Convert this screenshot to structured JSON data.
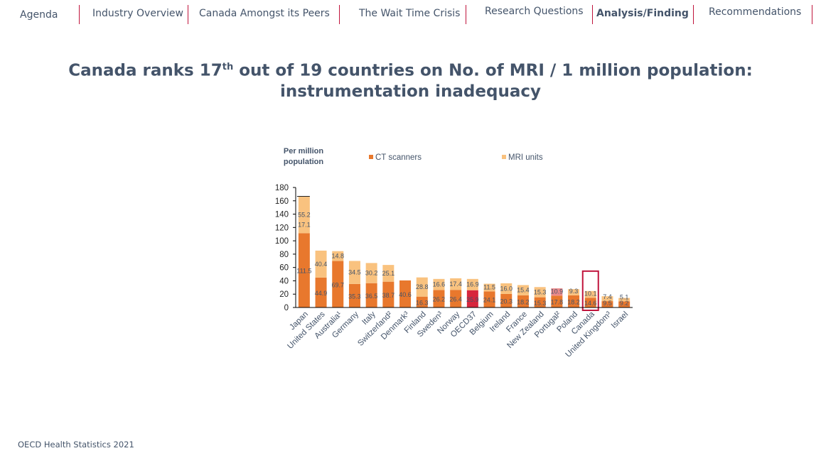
{
  "nav": {
    "tabs": [
      {
        "label": "Agenda",
        "active": false
      },
      {
        "label": "Industry Overview",
        "active": false
      },
      {
        "label": "Canada Amongst its Peers",
        "active": false
      },
      {
        "label": "The Wait Time Crisis",
        "active": false
      },
      {
        "label": "Research Questions",
        "active": false
      },
      {
        "label": "Analysis/Finding",
        "active": true
      },
      {
        "label": "Recommendations",
        "active": false
      }
    ]
  },
  "slide": {
    "title_pre": "Canada ranks 17",
    "title_sup": "th",
    "title_post": " out of 19 countries on No. of MRI / 1 million population: instrumentation inadequacy",
    "source": "OECD Health Statistics 2021"
  },
  "chart_data": {
    "type": "bar",
    "stacked": true,
    "unit_label": "Per million population",
    "categories": [
      "Japan",
      "United States",
      "Australia¹",
      "Germany",
      "Italy",
      "Switzerland²",
      "Denmark³",
      "Finland",
      "Sweden³",
      "Norway",
      "OECD37",
      "Belgium",
      "Ireland",
      "France",
      "New Zealand",
      "Portugal²",
      "Poland",
      "Canada",
      "United Kingdom³",
      "Israel"
    ],
    "series": [
      {
        "name": "CT scanners",
        "color": "#e8782d",
        "values": [
          111.5,
          44.9,
          69.7,
          35.3,
          36.5,
          38.7,
          40.6,
          16.3,
          26.2,
          26.4,
          25.9,
          24.1,
          20.3,
          18.2,
          15.3,
          17.8,
          18.2,
          14.6,
          9.5,
          9.2
        ],
        "labels": [
          "111.5",
          "44.9",
          "69.7",
          "35.3",
          "36.5",
          "38.7",
          "40.6",
          "16.3",
          "26.2",
          "26.4",
          "25.9",
          "24.1",
          "20.3",
          "18.2",
          "15.3",
          "17.8",
          "18.2",
          "14.6",
          "9.5",
          "9.2"
        ]
      },
      {
        "name": "MRI units",
        "color": "#f9c27f",
        "values": [
          55.2,
          40.4,
          14.8,
          34.5,
          30.2,
          25.1,
          null,
          28.8,
          16.6,
          17.4,
          16.9,
          11.5,
          16.0,
          15.4,
          15.3,
          10.9,
          9.3,
          10.1,
          7.4,
          5.1
        ],
        "labels": [
          "55.2",
          "40.4",
          "14.8",
          "34.5",
          "30.2",
          "25.1",
          "",
          "28.8",
          "16.6",
          "17.4",
          "16.9",
          "11.5",
          "16.0",
          "15.4",
          "15.3",
          "10.9",
          "9.3",
          "10.1",
          "7.4",
          "5.1"
        ]
      }
    ],
    "extra_labels": [
      {
        "category": "Japan",
        "value": 17.1,
        "label": "17.1"
      }
    ],
    "highlight": {
      "OECD37": {
        "ct": "#d7263d",
        "mri": "#f9c27f"
      },
      "Portugal²": {
        "ct": "#e8782d",
        "mri": "#ec8a8a"
      }
    },
    "boxed_category": "Canada",
    "box_color": "#c0143c",
    "ylim": [
      0,
      180
    ],
    "yticks": [
      0,
      20,
      40,
      60,
      80,
      100,
      120,
      140,
      160,
      180
    ],
    "legend_position": "top"
  }
}
